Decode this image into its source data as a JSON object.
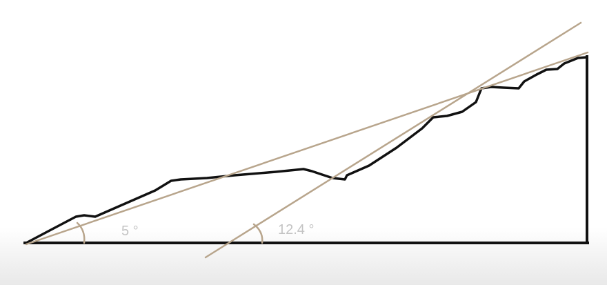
{
  "diagram": {
    "angles": [
      {
        "label": "5 °"
      },
      {
        "label": "12.4 °"
      }
    ],
    "colors": {
      "profile": "#111111",
      "reference_line": "#b8a58c",
      "angle_label": "#c3c3c3",
      "background": "#ffffff"
    }
  }
}
